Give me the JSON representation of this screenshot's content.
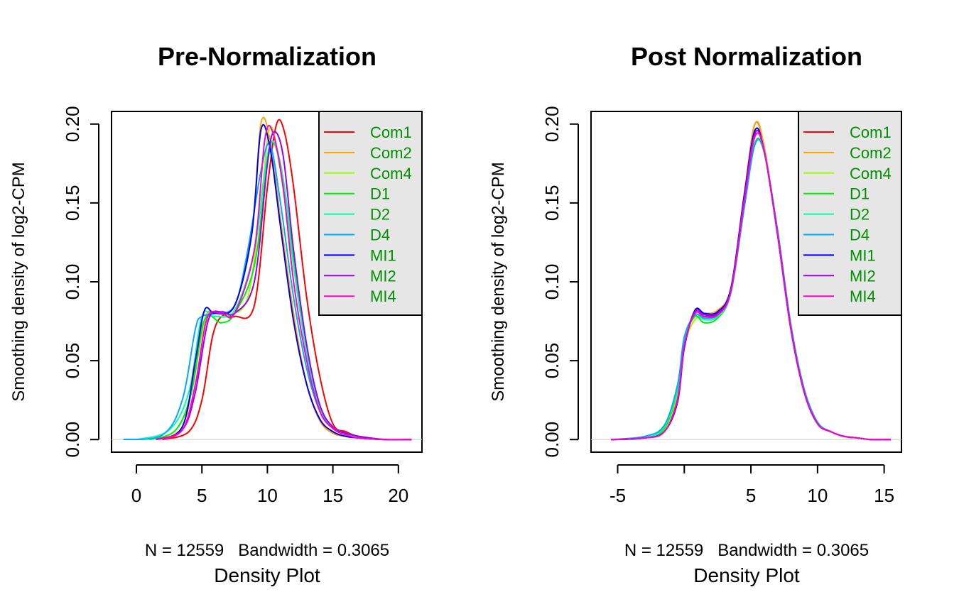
{
  "chart_data": [
    {
      "type": "line",
      "title": "Pre-Normalization",
      "xlabel": "Density Plot",
      "subtitle": "N = 12559   Bandwidth = 0.3065",
      "ylabel": "Smoothing density of log2-CPM",
      "xlim": [
        -1.9,
        21.8
      ],
      "ylim": [
        -0.008,
        0.208
      ],
      "xticks": [
        "0",
        "5",
        "10",
        "15",
        "20"
      ],
      "xtick_values": [
        0,
        5,
        10,
        15,
        20
      ],
      "yticks": [
        "0.00",
        "0.05",
        "0.10",
        "0.15",
        "0.20"
      ],
      "ytick_values": [
        0,
        0.05,
        0.1,
        0.15,
        0.2
      ],
      "legend_position": "top-right",
      "legend_text_color": "#009100",
      "legend_bg": "#e6e6e6",
      "series": [
        {
          "name": "Com1",
          "color": "#ff0000",
          "x": [
            2,
            4,
            5,
            5.8,
            6.5,
            7.5,
            9,
            10,
            10.7,
            11.3,
            12,
            13,
            14,
            15,
            16,
            17,
            19,
            21
          ],
          "y": [
            0,
            0.005,
            0.025,
            0.065,
            0.078,
            0.078,
            0.085,
            0.16,
            0.2,
            0.195,
            0.16,
            0.09,
            0.04,
            0.01,
            0.005,
            0.002,
            0,
            0
          ]
        },
        {
          "name": "Com2",
          "color": "#ffa500",
          "x": [
            1.5,
            3.5,
            4.5,
            5.3,
            6,
            7.5,
            8.8,
            9.5,
            10.2,
            11,
            12,
            13,
            14,
            15,
            16,
            17,
            19,
            21
          ],
          "y": [
            0,
            0.008,
            0.045,
            0.078,
            0.081,
            0.085,
            0.13,
            0.2,
            0.19,
            0.14,
            0.08,
            0.035,
            0.012,
            0.004,
            0.002,
            0.001,
            0,
            0
          ]
        },
        {
          "name": "Com4",
          "color": "#9aff00",
          "x": [
            1,
            3,
            4.2,
            5.2,
            6,
            7,
            8.5,
            9.5,
            10.2,
            11,
            12,
            13,
            14,
            15,
            16,
            17,
            19,
            21
          ],
          "y": [
            0,
            0.006,
            0.03,
            0.075,
            0.078,
            0.079,
            0.09,
            0.15,
            0.198,
            0.17,
            0.11,
            0.055,
            0.02,
            0.007,
            0.003,
            0.001,
            0,
            0
          ]
        },
        {
          "name": "D1",
          "color": "#00ee00",
          "x": [
            1,
            3,
            4.2,
            5.2,
            6.5,
            7.5,
            9,
            10,
            10.5,
            11.3,
            12.2,
            13,
            14,
            15,
            16,
            17,
            19,
            21
          ],
          "y": [
            0,
            0.006,
            0.03,
            0.076,
            0.074,
            0.08,
            0.11,
            0.175,
            0.188,
            0.16,
            0.1,
            0.055,
            0.02,
            0.007,
            0.004,
            0.002,
            0,
            0
          ]
        },
        {
          "name": "D2",
          "color": "#00ffaa",
          "x": [
            0,
            2.5,
            4,
            5,
            6,
            7.5,
            9,
            10,
            10.6,
            11.3,
            12,
            13,
            14,
            15,
            16,
            17,
            19,
            21
          ],
          "y": [
            0,
            0.006,
            0.03,
            0.078,
            0.078,
            0.082,
            0.12,
            0.18,
            0.187,
            0.16,
            0.11,
            0.055,
            0.02,
            0.008,
            0.004,
            0.002,
            0,
            0
          ]
        },
        {
          "name": "D4",
          "color": "#00aaff",
          "x": [
            -1,
            2,
            3.5,
            4.5,
            5,
            6,
            7.5,
            8.5,
            9.5,
            10.2,
            11,
            12,
            13,
            14,
            15,
            16,
            17,
            19,
            21
          ],
          "y": [
            0,
            0.003,
            0.025,
            0.07,
            0.078,
            0.08,
            0.085,
            0.12,
            0.17,
            0.187,
            0.15,
            0.09,
            0.045,
            0.018,
            0.007,
            0.003,
            0.001,
            0,
            0
          ]
        },
        {
          "name": "MI1",
          "color": "#0000ee",
          "x": [
            1.5,
            3.5,
            4.5,
            5.2,
            6,
            7.5,
            8.8,
            9.5,
            10.2,
            11,
            12,
            13,
            14,
            15,
            16,
            17,
            19,
            21
          ],
          "y": [
            0,
            0.008,
            0.05,
            0.082,
            0.08,
            0.085,
            0.13,
            0.196,
            0.185,
            0.135,
            0.075,
            0.035,
            0.013,
            0.005,
            0.002,
            0.001,
            0,
            0
          ]
        },
        {
          "name": "MI2",
          "color": "#9900ee",
          "x": [
            1.5,
            3.5,
            4.5,
            5.5,
            6.5,
            7.5,
            9,
            10,
            10.5,
            11.2,
            12,
            13,
            14,
            15,
            16,
            17,
            19,
            21
          ],
          "y": [
            0,
            0.006,
            0.03,
            0.076,
            0.081,
            0.08,
            0.1,
            0.175,
            0.195,
            0.18,
            0.12,
            0.06,
            0.022,
            0.008,
            0.004,
            0.002,
            0,
            0
          ]
        },
        {
          "name": "MI4",
          "color": "#ff00cc",
          "x": [
            1.5,
            3.5,
            4.5,
            5.4,
            6.5,
            7.5,
            9,
            9.8,
            10.4,
            11.2,
            12,
            13,
            14,
            15,
            16,
            17,
            19,
            21
          ],
          "y": [
            0,
            0.006,
            0.035,
            0.077,
            0.08,
            0.08,
            0.12,
            0.19,
            0.195,
            0.16,
            0.1,
            0.05,
            0.018,
            0.007,
            0.003,
            0.001,
            0,
            0
          ]
        }
      ]
    },
    {
      "type": "line",
      "title": "Post Normalization",
      "xlabel": "Density Plot",
      "subtitle": "N = 12559   Bandwidth = 0.3065",
      "ylabel": "Smoothing density of log2-CPM",
      "xlim": [
        -7.0,
        16.3
      ],
      "ylim": [
        -0.008,
        0.208
      ],
      "xticks": [
        "-5",
        "5",
        "10",
        "15"
      ],
      "xtick_values": [
        -5,
        5,
        10,
        15
      ],
      "xaxis_ticks_at": [
        -5,
        0,
        5,
        10,
        15
      ],
      "yticks": [
        "0.00",
        "0.05",
        "0.10",
        "0.15",
        "0.20"
      ],
      "ytick_values": [
        0,
        0.05,
        0.1,
        0.15,
        0.2
      ],
      "legend_position": "top-right",
      "legend_text_color": "#009100",
      "legend_bg": "#e6e6e6",
      "series": [
        {
          "name": "Com1",
          "color": "#ff0000",
          "x": [
            -5.5,
            -3,
            -1.5,
            -0.5,
            0,
            0.8,
            1.5,
            2.5,
            3.5,
            4.5,
            5.3,
            6,
            7,
            8,
            9,
            10,
            11,
            12,
            13,
            14,
            15.5
          ],
          "y": [
            0,
            0.001,
            0.005,
            0.025,
            0.06,
            0.08,
            0.078,
            0.08,
            0.095,
            0.155,
            0.2,
            0.185,
            0.13,
            0.07,
            0.03,
            0.01,
            0.005,
            0.002,
            0.001,
            0,
            0
          ]
        },
        {
          "name": "Com2",
          "color": "#ffa500",
          "x": [
            -5.5,
            -3,
            -1.5,
            -0.5,
            0,
            0.8,
            1.5,
            2.5,
            3.5,
            4.5,
            5.3,
            6,
            7,
            8,
            9,
            10,
            11,
            12,
            13,
            14,
            15.5
          ],
          "y": [
            0,
            0.001,
            0.006,
            0.028,
            0.062,
            0.081,
            0.08,
            0.082,
            0.096,
            0.155,
            0.2,
            0.186,
            0.13,
            0.07,
            0.03,
            0.01,
            0.005,
            0.002,
            0.001,
            0,
            0
          ]
        },
        {
          "name": "Com4",
          "color": "#9aff00",
          "x": [
            -5.5,
            -3,
            -1.5,
            -0.5,
            0,
            0.8,
            1.5,
            2.5,
            3.5,
            4.5,
            5.3,
            6,
            7,
            8,
            9,
            10,
            11,
            12,
            13,
            14,
            15.5
          ],
          "y": [
            0,
            0.001,
            0.006,
            0.03,
            0.06,
            0.076,
            0.077,
            0.079,
            0.094,
            0.15,
            0.195,
            0.184,
            0.13,
            0.07,
            0.03,
            0.01,
            0.005,
            0.002,
            0.001,
            0,
            0
          ]
        },
        {
          "name": "D1",
          "color": "#00ee00",
          "x": [
            -5.5,
            -3,
            -1.5,
            -0.5,
            0,
            0.8,
            1.5,
            2.5,
            3.5,
            4.5,
            5.3,
            6,
            7,
            8,
            9,
            10,
            11,
            12,
            13,
            14,
            15.5
          ],
          "y": [
            0,
            0.001,
            0.007,
            0.032,
            0.063,
            0.078,
            0.074,
            0.077,
            0.093,
            0.148,
            0.188,
            0.182,
            0.132,
            0.072,
            0.031,
            0.011,
            0.005,
            0.002,
            0.001,
            0,
            0
          ]
        },
        {
          "name": "D2",
          "color": "#00ffaa",
          "x": [
            -5.5,
            -3,
            -1.5,
            -0.5,
            0,
            0.8,
            1.5,
            2.5,
            3.5,
            4.5,
            5.3,
            6,
            7,
            8,
            9,
            10,
            11,
            12,
            13,
            14,
            15.5
          ],
          "y": [
            0,
            0.001,
            0.008,
            0.033,
            0.064,
            0.079,
            0.076,
            0.078,
            0.093,
            0.147,
            0.187,
            0.182,
            0.132,
            0.072,
            0.032,
            0.011,
            0.005,
            0.002,
            0.001,
            0,
            0
          ]
        },
        {
          "name": "D4",
          "color": "#00aaff",
          "x": [
            -5.5,
            -3,
            -1.5,
            -0.5,
            0,
            0.8,
            1.5,
            2.5,
            3.5,
            4.5,
            5.3,
            6,
            7,
            8,
            9,
            10,
            11,
            12,
            13,
            14,
            15.5
          ],
          "y": [
            0,
            0.002,
            0.009,
            0.035,
            0.065,
            0.079,
            0.077,
            0.079,
            0.094,
            0.147,
            0.187,
            0.182,
            0.133,
            0.073,
            0.032,
            0.011,
            0.005,
            0.002,
            0.001,
            0,
            0
          ]
        },
        {
          "name": "MI1",
          "color": "#0000ee",
          "x": [
            -5.5,
            -3,
            -1.5,
            -0.5,
            0,
            0.8,
            1.5,
            2.5,
            3.5,
            4.5,
            5.3,
            6,
            7,
            8,
            9,
            10,
            11,
            12,
            13,
            14,
            15.5
          ],
          "y": [
            0,
            0.001,
            0.005,
            0.024,
            0.058,
            0.082,
            0.08,
            0.081,
            0.096,
            0.155,
            0.196,
            0.183,
            0.13,
            0.07,
            0.03,
            0.01,
            0.005,
            0.002,
            0.001,
            0,
            0
          ]
        },
        {
          "name": "MI2",
          "color": "#9900ee",
          "x": [
            -5.5,
            -3,
            -1.5,
            -0.5,
            0,
            0.8,
            1.5,
            2.5,
            3.5,
            4.5,
            5.3,
            6,
            7,
            8,
            9,
            10,
            11,
            12,
            13,
            14,
            15.5
          ],
          "y": [
            0,
            0.001,
            0.005,
            0.025,
            0.059,
            0.081,
            0.079,
            0.08,
            0.095,
            0.153,
            0.194,
            0.183,
            0.13,
            0.07,
            0.03,
            0.01,
            0.005,
            0.002,
            0.001,
            0,
            0
          ]
        },
        {
          "name": "MI4",
          "color": "#ff00cc",
          "x": [
            -5.5,
            -3,
            -1.5,
            -0.5,
            0,
            0.8,
            1.5,
            2.5,
            3.5,
            4.5,
            5.3,
            6,
            7,
            8,
            9,
            10,
            11,
            12,
            13,
            14,
            15.5
          ],
          "y": [
            0,
            0.001,
            0.005,
            0.026,
            0.06,
            0.08,
            0.078,
            0.079,
            0.094,
            0.151,
            0.192,
            0.183,
            0.13,
            0.07,
            0.03,
            0.01,
            0.005,
            0.002,
            0.001,
            0,
            0
          ]
        }
      ]
    }
  ]
}
